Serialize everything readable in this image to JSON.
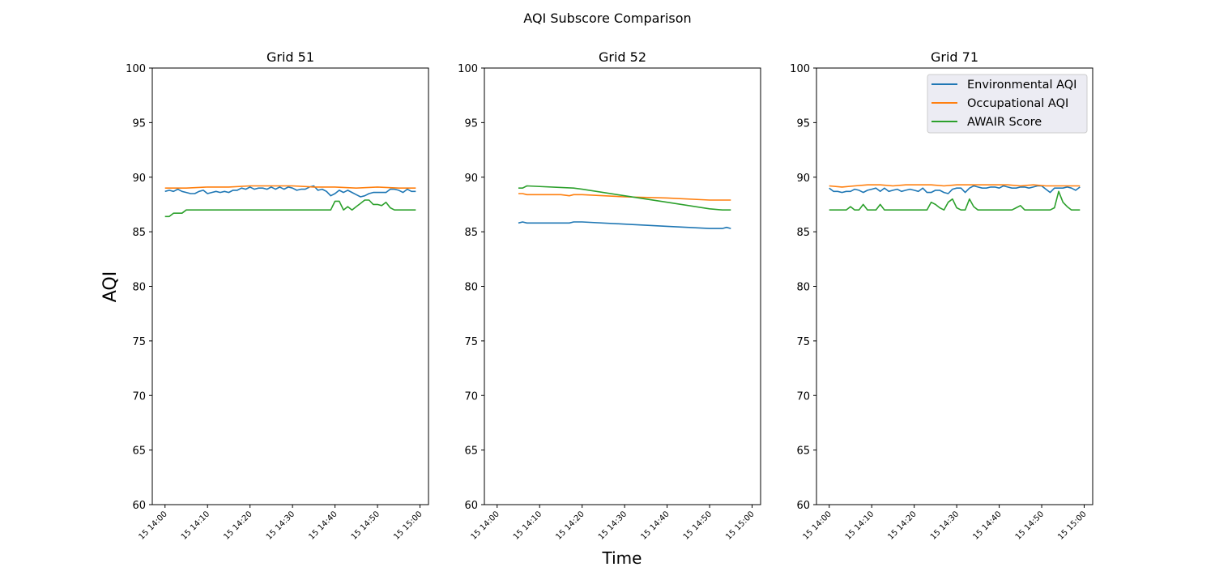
{
  "chart_data": {
    "type": "line",
    "title": "AQI Subscore Comparison",
    "xlabel": "Time",
    "ylabel": "AQI",
    "ylim": [
      60,
      100
    ],
    "yticks": [
      60,
      65,
      70,
      75,
      80,
      85,
      90,
      95,
      100
    ],
    "xticks": [
      "15 14:00",
      "15 14:10",
      "15 14:20",
      "15 14:30",
      "15 14:40",
      "15 14:50",
      "15 15:00"
    ],
    "grid": false,
    "legend": {
      "placement": "top-right",
      "panel": "Grid 71",
      "entries": [
        "Environmental AQI",
        "Occupational AQI",
        "AWAIR Score"
      ]
    },
    "colors": {
      "Environmental AQI": "#1f77b4",
      "Occupational AQI": "#ff7f0e",
      "AWAIR Score": "#2ca02c"
    },
    "panels": [
      {
        "title": "Grid 51",
        "xlim_minutes": [
          -3,
          62
        ],
        "series": [
          {
            "name": "Environmental AQI",
            "x": [
              0,
              1,
              2,
              3,
              4,
              5,
              6,
              7,
              8,
              9,
              10,
              11,
              12,
              13,
              14,
              15,
              16,
              17,
              18,
              19,
              20,
              21,
              22,
              23,
              24,
              25,
              26,
              27,
              28,
              29,
              30,
              31,
              32,
              33,
              34,
              35,
              36,
              37,
              38,
              39,
              40,
              41,
              42,
              43,
              44,
              45,
              46,
              47,
              48,
              49,
              50,
              51,
              52,
              53,
              54,
              55,
              56,
              57,
              58,
              59
            ],
            "y": [
              88.7,
              88.8,
              88.7,
              88.9,
              88.7,
              88.6,
              88.5,
              88.5,
              88.7,
              88.8,
              88.5,
              88.6,
              88.7,
              88.6,
              88.7,
              88.6,
              88.8,
              88.8,
              89.0,
              88.9,
              89.1,
              88.9,
              89.0,
              89.0,
              88.9,
              89.1,
              88.9,
              89.1,
              88.9,
              89.1,
              89.0,
              88.8,
              88.9,
              88.9,
              89.1,
              89.2,
              88.8,
              88.9,
              88.7,
              88.3,
              88.5,
              88.8,
              88.6,
              88.8,
              88.6,
              88.4,
              88.2,
              88.3,
              88.5,
              88.6,
              88.6,
              88.6,
              88.6,
              88.9,
              88.9,
              88.8,
              88.6,
              88.9,
              88.7,
              88.7
            ]
          },
          {
            "name": "Occupational AQI",
            "x": [
              0,
              5,
              10,
              15,
              20,
              25,
              30,
              35,
              40,
              45,
              50,
              55,
              59
            ],
            "y": [
              89.0,
              89.0,
              89.1,
              89.1,
              89.2,
              89.2,
              89.2,
              89.1,
              89.1,
              89.0,
              89.1,
              89.0,
              89.0
            ]
          },
          {
            "name": "AWAIR Score",
            "x": [
              0,
              1,
              2,
              3,
              4,
              5,
              6,
              10,
              20,
              30,
              38,
              39,
              40,
              41,
              42,
              43,
              44,
              45,
              46,
              47,
              48,
              49,
              50,
              51,
              52,
              53,
              54,
              55,
              56,
              57,
              58,
              59
            ],
            "y": [
              86.4,
              86.4,
              86.7,
              86.7,
              86.7,
              87.0,
              87.0,
              87.0,
              87.0,
              87.0,
              87.0,
              87.0,
              87.8,
              87.8,
              87.0,
              87.3,
              87.0,
              87.3,
              87.6,
              87.9,
              87.9,
              87.5,
              87.5,
              87.4,
              87.7,
              87.2,
              87.0,
              87.0,
              87.0,
              87.0,
              87.0,
              87.0
            ]
          }
        ]
      },
      {
        "title": "Grid 52",
        "xlim_minutes": [
          -3,
          62
        ],
        "series": [
          {
            "name": "Environmental AQI",
            "x": [
              5,
              6,
              7,
              10,
              15,
              17,
              18,
              20,
              30,
              40,
              50,
              53,
              54,
              55
            ],
            "y": [
              85.8,
              85.9,
              85.8,
              85.8,
              85.8,
              85.8,
              85.9,
              85.9,
              85.7,
              85.5,
              85.3,
              85.3,
              85.4,
              85.3
            ]
          },
          {
            "name": "Occupational AQI",
            "x": [
              5,
              6,
              7,
              10,
              15,
              17,
              18,
              20,
              30,
              40,
              50,
              53,
              54,
              55
            ],
            "y": [
              88.5,
              88.5,
              88.4,
              88.4,
              88.4,
              88.3,
              88.4,
              88.4,
              88.2,
              88.1,
              87.9,
              87.9,
              87.9,
              87.9
            ]
          },
          {
            "name": "AWAIR Score",
            "x": [
              5,
              6,
              7,
              18,
              20,
              30,
              40,
              50,
              53,
              54,
              55
            ],
            "y": [
              89.0,
              89.0,
              89.2,
              89.0,
              88.9,
              88.3,
              87.7,
              87.1,
              87.0,
              87.0,
              87.0
            ]
          }
        ]
      },
      {
        "title": "Grid 71",
        "xlim_minutes": [
          -3,
          62
        ],
        "series": [
          {
            "name": "Environmental AQI",
            "x": [
              0,
              1,
              2,
              3,
              4,
              5,
              6,
              7,
              8,
              9,
              10,
              11,
              12,
              13,
              14,
              15,
              16,
              17,
              18,
              19,
              20,
              21,
              22,
              23,
              24,
              25,
              26,
              27,
              28,
              29,
              30,
              31,
              32,
              33,
              34,
              35,
              36,
              37,
              38,
              39,
              40,
              41,
              42,
              43,
              44,
              45,
              46,
              47,
              48,
              49,
              50,
              51,
              52,
              53,
              54,
              55,
              56,
              57,
              58,
              59
            ],
            "y": [
              89.0,
              88.7,
              88.7,
              88.6,
              88.7,
              88.7,
              88.9,
              88.8,
              88.6,
              88.8,
              88.9,
              89.0,
              88.7,
              89.0,
              88.7,
              88.8,
              88.9,
              88.7,
              88.8,
              88.9,
              88.8,
              88.7,
              89.0,
              88.6,
              88.6,
              88.8,
              88.8,
              88.6,
              88.5,
              88.9,
              89.0,
              89.0,
              88.6,
              89.0,
              89.2,
              89.1,
              89.0,
              89.0,
              89.1,
              89.1,
              89.0,
              89.2,
              89.1,
              89.0,
              89.0,
              89.1,
              89.1,
              89.0,
              89.1,
              89.2,
              89.2,
              88.9,
              88.6,
              89.0,
              89.0,
              89.0,
              89.1,
              89.0,
              88.8,
              89.1
            ]
          },
          {
            "name": "Occupational AQI",
            "x": [
              0,
              3,
              6,
              9,
              12,
              15,
              18,
              21,
              24,
              27,
              30,
              33,
              36,
              39,
              42,
              45,
              48,
              51,
              54,
              57,
              59
            ],
            "y": [
              89.2,
              89.1,
              89.2,
              89.3,
              89.3,
              89.2,
              89.3,
              89.3,
              89.3,
              89.2,
              89.3,
              89.3,
              89.3,
              89.3,
              89.3,
              89.2,
              89.3,
              89.2,
              89.2,
              89.2,
              89.2
            ]
          },
          {
            "name": "AWAIR Score",
            "x": [
              0,
              1,
              2,
              3,
              4,
              5,
              6,
              7,
              8,
              9,
              10,
              11,
              12,
              13,
              14,
              15,
              16,
              17,
              18,
              19,
              20,
              21,
              22,
              23,
              24,
              25,
              26,
              27,
              28,
              29,
              30,
              31,
              32,
              33,
              34,
              35,
              36,
              37,
              38,
              39,
              40,
              41,
              42,
              43,
              44,
              45,
              46,
              47,
              48,
              49,
              50,
              51,
              52,
              53,
              54,
              55,
              56,
              57,
              58,
              59
            ],
            "y": [
              87.0,
              87.0,
              87.0,
              87.0,
              87.0,
              87.3,
              87.0,
              87.0,
              87.5,
              87.0,
              87.0,
              87.0,
              87.5,
              87.0,
              87.0,
              87.0,
              87.0,
              87.0,
              87.0,
              87.0,
              87.0,
              87.0,
              87.0,
              87.0,
              87.7,
              87.5,
              87.2,
              87.0,
              87.7,
              88.0,
              87.2,
              87.0,
              87.0,
              88.0,
              87.3,
              87.0,
              87.0,
              87.0,
              87.0,
              87.0,
              87.0,
              87.0,
              87.0,
              87.0,
              87.2,
              87.4,
              87.0,
              87.0,
              87.0,
              87.0,
              87.0,
              87.0,
              87.0,
              87.2,
              88.7,
              87.7,
              87.3,
              87.0,
              87.0,
              87.0
            ]
          }
        ]
      }
    ]
  }
}
